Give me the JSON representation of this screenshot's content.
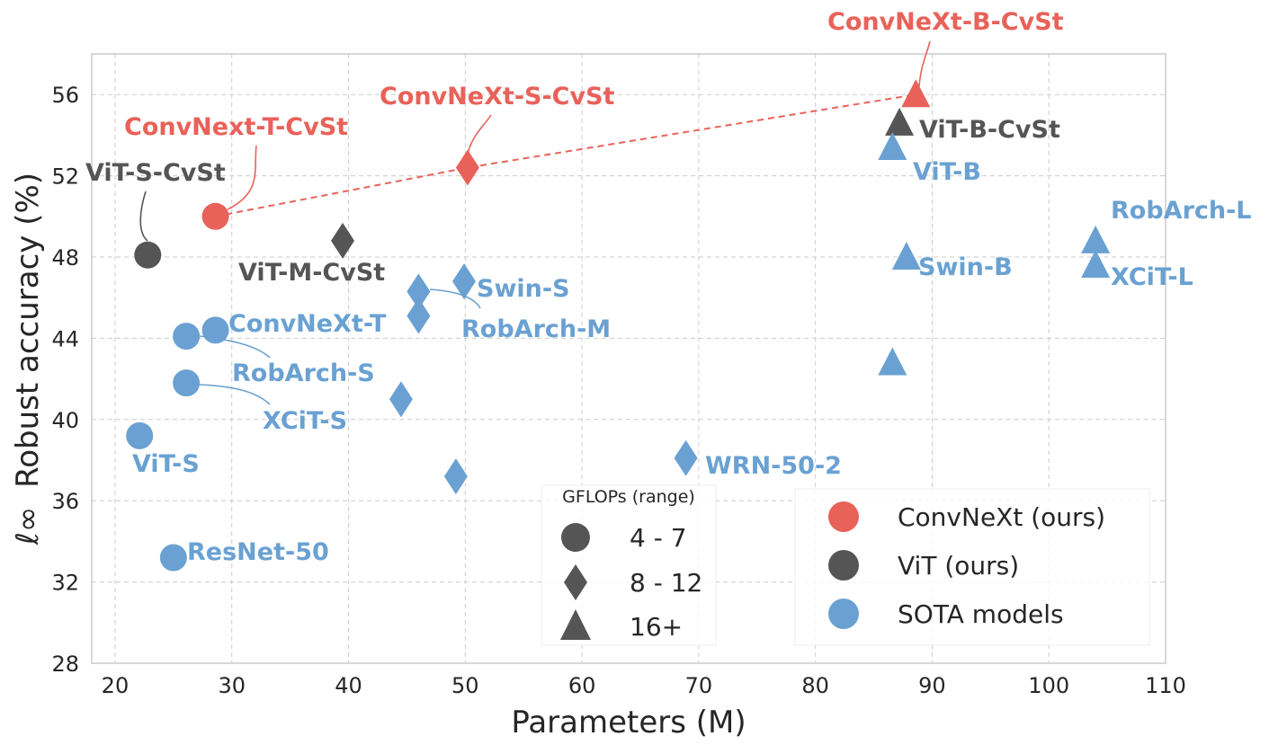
{
  "chart_data": {
    "type": "scatter",
    "title": "",
    "xlabel": "Parameters (M)",
    "ylabel": "Robust accuracy (%)",
    "ylabel_prefix": "ℓ∞",
    "xlim": [
      18,
      110
    ],
    "ylim": [
      28,
      58
    ],
    "xticks": [
      20,
      30,
      40,
      50,
      60,
      70,
      80,
      90,
      100,
      110
    ],
    "yticks": [
      28,
      32,
      36,
      40,
      44,
      48,
      52,
      56
    ],
    "grid": true,
    "colors": {
      "convnext": "#e8625a",
      "vit": "#555555",
      "sota": "#6aa1d2"
    },
    "series": [
      {
        "name": "ConvNeXt (ours)",
        "group": "convnext"
      },
      {
        "name": "ViT (ours)",
        "group": "vit"
      },
      {
        "name": "SOTA models",
        "group": "sota"
      }
    ],
    "points": [
      {
        "label": "ConvNext-T-CvSt",
        "x": 28.6,
        "y": 50.0,
        "group": "convnext",
        "gflops": "4 - 7"
      },
      {
        "label": "ConvNeXt-S-CvSt",
        "x": 50.2,
        "y": 52.4,
        "group": "convnext",
        "gflops": "8 - 12"
      },
      {
        "label": "ConvNeXt-B-CvSt",
        "x": 88.6,
        "y": 56.0,
        "group": "convnext",
        "gflops": "16+"
      },
      {
        "label": "ViT-S-CvSt",
        "x": 22.8,
        "y": 48.1,
        "group": "vit",
        "gflops": "4 - 7"
      },
      {
        "label": "ViT-M-CvSt",
        "x": 39.5,
        "y": 48.8,
        "group": "vit",
        "gflops": "8 - 12"
      },
      {
        "label": "ViT-B-CvSt",
        "x": 87.2,
        "y": 54.6,
        "group": "vit",
        "gflops": "16+"
      },
      {
        "label": "ViT-B",
        "x": 86.6,
        "y": 53.4,
        "group": "sota",
        "gflops": "16+"
      },
      {
        "label": "RobArch-L",
        "x": 104.0,
        "y": 48.8,
        "group": "sota",
        "gflops": "16+"
      },
      {
        "label": "XCiT-L",
        "x": 104.0,
        "y": 47.6,
        "group": "sota",
        "gflops": "16+"
      },
      {
        "label": "Swin-B",
        "x": 87.8,
        "y": 48.0,
        "group": "sota",
        "gflops": "16+"
      },
      {
        "label": "",
        "x": 86.6,
        "y": 42.8,
        "group": "sota",
        "gflops": "16+"
      },
      {
        "label": "Swin-S",
        "x": 49.9,
        "y": 46.8,
        "group": "sota",
        "gflops": "8 - 12"
      },
      {
        "label": "RobArch-M",
        "x": 46.0,
        "y": 46.3,
        "group": "sota",
        "gflops": "8 - 12"
      },
      {
        "label": "ConvNeXt-T",
        "x": 28.6,
        "y": 44.4,
        "group": "sota",
        "gflops": "4 - 7"
      },
      {
        "label": "",
        "x": 46.0,
        "y": 45.1,
        "group": "sota",
        "gflops": "8 - 12"
      },
      {
        "label": "RobArch-S",
        "x": 26.1,
        "y": 44.1,
        "group": "sota",
        "gflops": "4 - 7"
      },
      {
        "label": "XCiT-S",
        "x": 26.1,
        "y": 41.8,
        "group": "sota",
        "gflops": "4 - 7"
      },
      {
        "label": "",
        "x": 44.5,
        "y": 41.0,
        "group": "sota",
        "gflops": "8 - 12"
      },
      {
        "label": "ViT-S",
        "x": 22.1,
        "y": 39.2,
        "group": "sota",
        "gflops": "4 - 7"
      },
      {
        "label": "WRN-50-2",
        "x": 68.9,
        "y": 38.1,
        "group": "sota",
        "gflops": "8 - 12"
      },
      {
        "label": "",
        "x": 49.2,
        "y": 37.2,
        "group": "sota",
        "gflops": "8 - 12"
      },
      {
        "label": "ResNet-50",
        "x": 25.0,
        "y": 33.2,
        "group": "sota",
        "gflops": "4 - 7"
      }
    ],
    "trend_line": {
      "group": "convnext",
      "style": "dashed",
      "points": [
        [
          28.6,
          50.0
        ],
        [
          50.2,
          52.4
        ],
        [
          88.6,
          56.0
        ]
      ]
    },
    "size_legend": {
      "title": "GFLOPs (range)",
      "entries": [
        {
          "label": "4 - 7",
          "marker": "circle"
        },
        {
          "label": "8 - 12",
          "marker": "diamond"
        },
        {
          "label": "16+",
          "marker": "triangle"
        }
      ]
    },
    "legend_placement": "bottom-right"
  }
}
